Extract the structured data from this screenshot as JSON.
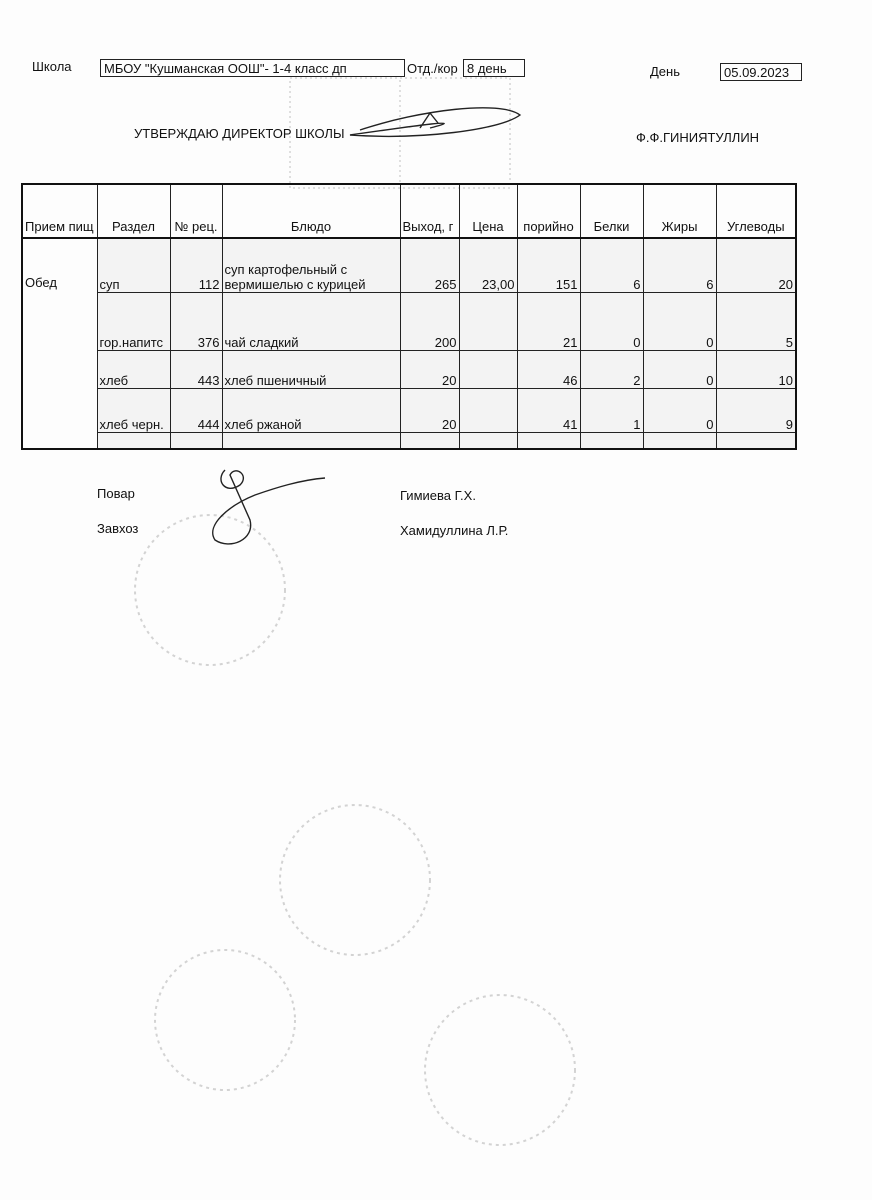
{
  "header": {
    "school_label": "Школа",
    "school_value": "МБОУ \"Кушманская ООШ\"- 1-4 класс дп",
    "dept_label": "Отд./кор",
    "dept_value": "8 день",
    "day_label": "День",
    "day_value": "05.09.2023",
    "approve_text": "УТВЕРЖДАЮ ДИРЕКТОР  ШКОЛЫ",
    "director_name": "Ф.Ф.ГИНИЯТУЛЛИН"
  },
  "table": {
    "columns": [
      "Прием пищ",
      "Раздел",
      "№ рец.",
      "Блюдо",
      "Выход, г",
      "Цена",
      "порийно",
      "Белки",
      "Жиры",
      "Углеводы"
    ],
    "meal": "Обед",
    "rows": [
      {
        "section": "суп",
        "recipe": "112",
        "dish_line1": "суп картофельный с",
        "dish_line2": "вермишелью с курицей",
        "yield": "265",
        "price": "23,00",
        "kcal": "151",
        "protein": "6",
        "fat": "6",
        "carbs": "20"
      },
      {
        "section": "гор.напитс",
        "recipe": "376",
        "dish_line1": "",
        "dish_line2": "чай сладкий",
        "yield": "200",
        "price": "",
        "kcal": "21",
        "protein": "0",
        "fat": "0",
        "carbs": "5"
      },
      {
        "section": "хлеб",
        "recipe": "443",
        "dish_line1": "",
        "dish_line2": "хлеб пшеничный",
        "yield": "20",
        "price": "",
        "kcal": "46",
        "protein": "2",
        "fat": "0",
        "carbs": "10"
      },
      {
        "section": "хлеб черн.",
        "recipe": "444",
        "dish_line1": "",
        "dish_line2": "хлеб ржаной",
        "yield": "20",
        "price": "",
        "kcal": "41",
        "protein": "1",
        "fat": "0",
        "carbs": "9"
      }
    ]
  },
  "footer": {
    "cook_label": "Повар",
    "cook_name": "Гимиева Г.Х.",
    "manager_label": "Завхоз",
    "manager_name": "Хамидуллина Л.Р."
  }
}
